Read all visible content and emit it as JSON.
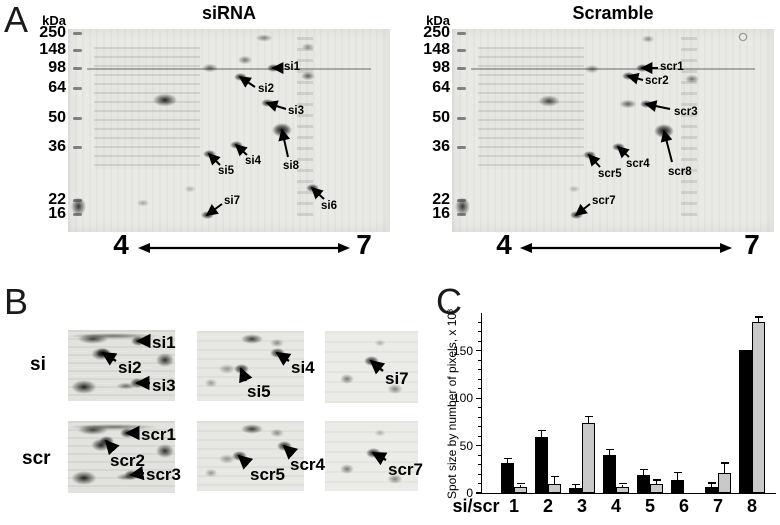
{
  "panelA": {
    "letter": "A",
    "gels": [
      {
        "title": "siRNA",
        "unit": "kDa",
        "ph_left": "4",
        "ph_right": "7",
        "markers": [
          {
            "label": "250",
            "y": 4
          },
          {
            "label": "148",
            "y": 21
          },
          {
            "label": "98",
            "y": 39
          },
          {
            "label": "64",
            "y": 59
          },
          {
            "label": "50",
            "y": 89
          },
          {
            "label": "36",
            "y": 118
          },
          {
            "label": "22",
            "y": 171
          },
          {
            "label": "16",
            "y": 185
          }
        ],
        "annotations": [
          {
            "label": "si1",
            "l": [
              216,
              33
            ],
            "a": [
              214,
              39
            ],
            "t": [
              205,
              39
            ]
          },
          {
            "label": "si2",
            "l": [
              190,
              55
            ],
            "a": [
              187,
              58
            ],
            "t": [
              172,
              48
            ]
          },
          {
            "label": "si3",
            "l": [
              220,
              77
            ],
            "a": [
              218,
              80
            ],
            "t": [
              199,
              74
            ]
          },
          {
            "label": "si4",
            "l": [
              177,
              127
            ],
            "a": [
              179,
              126
            ],
            "t": [
              168,
              116
            ]
          },
          {
            "label": "si5",
            "l": [
              150,
              137
            ],
            "a": [
              152,
              136
            ],
            "t": [
              141,
              125
            ]
          },
          {
            "label": "si8",
            "l": [
              215,
              132
            ],
            "a": [
              220,
              128
            ],
            "t": [
              214,
              101
            ],
            "big": true
          },
          {
            "label": "si7",
            "l": [
              156,
              167
            ],
            "a": [
              154,
              175
            ],
            "t": [
              139,
              186
            ]
          },
          {
            "label": "si6",
            "l": [
              253,
              172
            ],
            "a": [
              256,
              170
            ],
            "t": [
              244,
              159
            ]
          }
        ]
      },
      {
        "title": "Scramble",
        "unit": "kDa",
        "ph_left": "4",
        "ph_right": "7",
        "markers": [
          {
            "label": "250",
            "y": 4
          },
          {
            "label": "148",
            "y": 21
          },
          {
            "label": "98",
            "y": 39
          },
          {
            "label": "64",
            "y": 59
          },
          {
            "label": "50",
            "y": 89
          },
          {
            "label": "36",
            "y": 118
          },
          {
            "label": "22",
            "y": 171
          },
          {
            "label": "16",
            "y": 185
          }
        ],
        "annotations": [
          {
            "label": "scr1",
            "l": [
              208,
              33
            ],
            "a": [
              206,
              39
            ],
            "t": [
              190,
              39
            ]
          },
          {
            "label": "scr2",
            "l": [
              193,
              47
            ],
            "a": [
              191,
              51
            ],
            "t": [
              176,
              47
            ]
          },
          {
            "label": "scr3",
            "l": [
              222,
              78
            ],
            "a": [
              218,
              80
            ],
            "t": [
              194,
              75
            ]
          },
          {
            "label": "scr4",
            "l": [
              174,
              130
            ],
            "a": [
              177,
              128
            ],
            "t": [
              166,
              118
            ]
          },
          {
            "label": "scr5",
            "l": [
              146,
              140
            ],
            "a": [
              148,
              138
            ],
            "t": [
              137,
              126
            ]
          },
          {
            "label": "scr8",
            "l": [
              216,
              138
            ],
            "a": [
              220,
              133
            ],
            "t": [
              212,
              102
            ],
            "big": true
          },
          {
            "label": "scr7",
            "l": [
              140,
              167
            ],
            "a": [
              138,
              175
            ],
            "t": [
              124,
              186
            ]
          }
        ]
      }
    ]
  },
  "panelB": {
    "letter": "B",
    "rows": [
      {
        "label": "si",
        "crops": [
          {
            "annotations": [
              {
                "label": "si1",
                "l": [
                  84,
                  4
                ],
                "a": [
                  82,
                  11
                ],
                "t": [
                  70,
                  11
                ]
              },
              {
                "label": "si2",
                "l": [
                  50,
                  29
                ],
                "a": [
                  48,
                  31
                ],
                "t": [
                  35,
                  23
                ]
              },
              {
                "label": "si3",
                "l": [
                  84,
                  47
                ],
                "a": [
                  82,
                  53
                ],
                "t": [
                  69,
                  53
                ]
              }
            ]
          },
          {
            "annotations": [
              {
                "label": "si4",
                "l": [
                  94,
                  28
                ],
                "a": [
                  92,
                  30
                ],
                "t": [
                  80,
                  22
                ]
              },
              {
                "label": "si5",
                "l": [
                  50,
                  52
                ],
                "a": [
                  49,
                  50
                ],
                "t": [
                  44,
                  38
                ]
              }
            ]
          },
          {
            "annotations": [
              {
                "label": "si7",
                "l": [
                  60,
                  39
                ],
                "a": [
                  58,
                  40
                ],
                "t": [
                  46,
                  30
                ]
              }
            ]
          }
        ]
      },
      {
        "label": "scr",
        "crops": [
          {
            "annotations": [
              {
                "label": "scr1",
                "l": [
                  73,
                  5
                ],
                "a": [
                  71,
                  12
                ],
                "t": [
                  59,
                  12
                ]
              },
              {
                "label": "scr2",
                "l": [
                  42,
                  31
                ],
                "a": [
                  46,
                  29
                ],
                "t": [
                  38,
                  20
                ]
              },
              {
                "label": "scr3",
                "l": [
                  78,
                  45
                ],
                "a": [
                  76,
                  52
                ],
                "t": [
                  63,
                  54
                ]
              }
            ]
          },
          {
            "annotations": [
              {
                "label": "scr4",
                "l": [
                  93,
                  35
                ],
                "a": [
                  96,
                  33
                ],
                "t": [
                  87,
                  25
                ]
              },
              {
                "label": "scr5",
                "l": [
                  53,
                  45
                ],
                "a": [
                  51,
                  43
                ],
                "t": [
                  42,
                  35
                ]
              }
            ]
          },
          {
            "annotations": [
              {
                "label": "scr7",
                "l": [
                  63,
                  40
                ],
                "a": [
                  61,
                  39
                ],
                "t": [
                  48,
                  32
                ]
              }
            ]
          }
        ]
      }
    ]
  },
  "panelC": {
    "letter": "C"
  },
  "chart_data": {
    "type": "bar",
    "title": "",
    "ylabel": "Spot size by number of pixels, x 10³",
    "x_prefix": "si/scr",
    "categories": [
      "1",
      "2",
      "3",
      "4",
      "5",
      "6",
      "7",
      "8"
    ],
    "series": [
      {
        "name": "si",
        "color": "#000000",
        "values": [
          32,
          59,
          5,
          40,
          19,
          14,
          6,
          151
        ],
        "errors": [
          4,
          6,
          3,
          5,
          5,
          7,
          4,
          0
        ]
      },
      {
        "name": "scr",
        "color": "#c9c9c9",
        "values": [
          6,
          10,
          74,
          6,
          9,
          0,
          21,
          181
        ],
        "errors": [
          3,
          7,
          6,
          3,
          4,
          0,
          10,
          4
        ]
      }
    ],
    "ylim": [
      0,
      190
    ],
    "yticks": [
      0,
      50,
      100,
      150
    ],
    "minor_tick_step": 10,
    "grid": false,
    "legend": "none"
  }
}
